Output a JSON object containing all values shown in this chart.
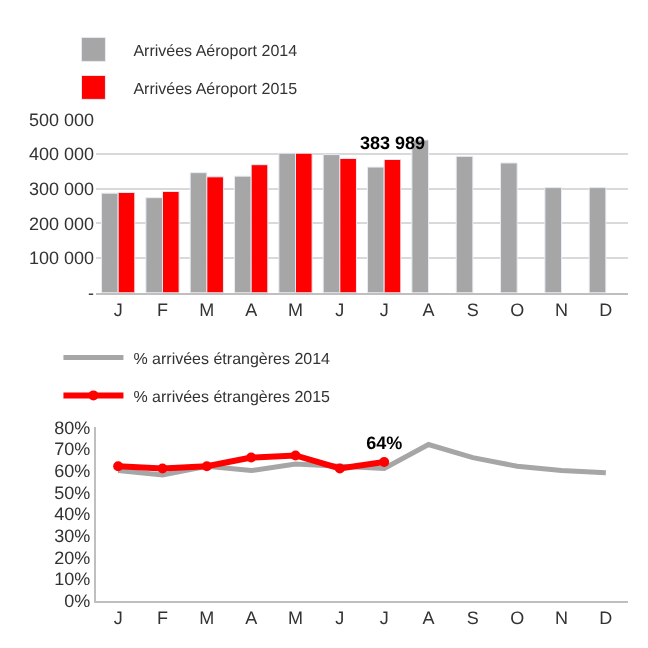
{
  "chart_data": [
    {
      "type": "bar",
      "categories": [
        "J",
        "F",
        "M",
        "A",
        "M",
        "J",
        "J",
        "A",
        "S",
        "O",
        "N",
        "D"
      ],
      "series": [
        {
          "name": "Arrivées Aéroport 2014",
          "color": "#a6a6a6",
          "values": [
            287000,
            274000,
            346000,
            336000,
            402000,
            398000,
            362000,
            440000,
            393000,
            374000,
            303000,
            303000
          ]
        },
        {
          "name": "Arrivées Aéroport 2015",
          "color": "#ff0000",
          "values": [
            289000,
            292000,
            334000,
            369000,
            402000,
            387000,
            383989,
            null,
            null,
            null,
            null,
            null
          ],
          "value_labels": [
            null,
            null,
            null,
            null,
            null,
            null,
            "383 989",
            null,
            null,
            null,
            null,
            null
          ]
        }
      ],
      "ylim": [
        0,
        500000
      ],
      "yticks": [
        {
          "value": 0,
          "label": "-"
        },
        {
          "value": 100000,
          "label": "100 000"
        },
        {
          "value": 200000,
          "label": "200 000"
        },
        {
          "value": 300000,
          "label": "300 000"
        },
        {
          "value": 400000,
          "label": "400 000"
        },
        {
          "value": 500000,
          "label": "500 000"
        }
      ],
      "grid": "y",
      "legend": "top"
    },
    {
      "type": "line",
      "categories": [
        "J",
        "F",
        "M",
        "A",
        "M",
        "J",
        "J",
        "A",
        "S",
        "O",
        "N",
        "D"
      ],
      "series": [
        {
          "name": "% arrivées étrangères 2014",
          "color": "#a6a6a6",
          "marker": "none",
          "values": [
            60,
            58,
            62,
            60,
            63,
            62,
            61,
            72,
            66,
            62,
            60,
            59
          ]
        },
        {
          "name": "% arrivées étrangères 2015",
          "color": "#ff0000",
          "marker": "circle",
          "values": [
            62,
            61,
            62,
            66,
            67,
            61,
            64,
            null,
            null,
            null,
            null,
            null
          ],
          "value_labels": [
            null,
            null,
            null,
            null,
            null,
            null,
            "64%",
            null,
            null,
            null,
            null,
            null
          ]
        }
      ],
      "ylim": [
        0,
        80
      ],
      "yticks": [
        {
          "value": 0,
          "label": "0%"
        },
        {
          "value": 10,
          "label": "10%"
        },
        {
          "value": 20,
          "label": "20%"
        },
        {
          "value": 30,
          "label": "30%"
        },
        {
          "value": 40,
          "label": "40%"
        },
        {
          "value": 50,
          "label": "50%"
        },
        {
          "value": 60,
          "label": "60%"
        },
        {
          "value": 70,
          "label": "70%"
        },
        {
          "value": 80,
          "label": "80%"
        }
      ],
      "grid": false,
      "legend": "top"
    }
  ]
}
